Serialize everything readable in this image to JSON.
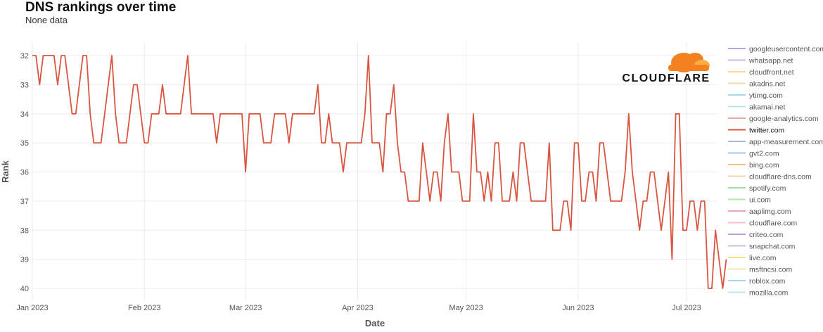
{
  "title": "DNS rankings over time",
  "subtitle": "None data",
  "logo_text": "CLOUDFLARE",
  "chart_data": {
    "type": "line",
    "title": "DNS rankings over time",
    "subtitle": "None data",
    "xlabel": "Date",
    "ylabel": "Rank",
    "y_reversed": true,
    "ylim": [
      32,
      40
    ],
    "yticks": [
      "32",
      "33",
      "34",
      "35",
      "36",
      "37",
      "38",
      "39",
      "40"
    ],
    "xlim": [
      "2023-01-01",
      "2023-07-10"
    ],
    "xticks": [
      {
        "date": "2023-01-01",
        "label": "Jan 2023"
      },
      {
        "date": "2023-02-01",
        "label": "Feb 2023"
      },
      {
        "date": "2023-03-01",
        "label": "Mar 2023"
      },
      {
        "date": "2023-04-01",
        "label": "Apr 2023"
      },
      {
        "date": "2023-05-01",
        "label": "May 2023"
      },
      {
        "date": "2023-06-01",
        "label": "Jun 2023"
      },
      {
        "date": "2023-07-01",
        "label": "Jul 2023"
      }
    ],
    "grid": true,
    "legend_position": "right",
    "legend": [
      {
        "name": "googleusercontent.com",
        "color": "#b7a6d9"
      },
      {
        "name": "whatsapp.net",
        "color": "#d8b6e3"
      },
      {
        "name": "cloudfront.net",
        "color": "#f7d88c"
      },
      {
        "name": "akadns.net",
        "color": "#f7d9a8"
      },
      {
        "name": "ytimg.com",
        "color": "#a9d7ec"
      },
      {
        "name": "akamai.net",
        "color": "#b9e2ef"
      },
      {
        "name": "google-analytics.com",
        "color": "#e8a79d"
      },
      {
        "name": "twitter.com",
        "color": "#d9553f"
      },
      {
        "name": "app-measurement.com",
        "color": "#9cb9e8"
      },
      {
        "name": "gvt2.com",
        "color": "#a9c4ee"
      },
      {
        "name": "bing.com",
        "color": "#f5bf86"
      },
      {
        "name": "cloudflare-dns.com",
        "color": "#f7d0b0"
      },
      {
        "name": "spotify.com",
        "color": "#9fdba6"
      },
      {
        "name": "ui.com",
        "color": "#b5e4b5"
      },
      {
        "name": "aaplimg.com",
        "color": "#f0a3b3"
      },
      {
        "name": "cloudflare.com",
        "color": "#f3c1cb"
      },
      {
        "name": "criteo.com",
        "color": "#c69be0"
      },
      {
        "name": "snapchat.com",
        "color": "#d9b8e6"
      },
      {
        "name": "live.com",
        "color": "#f7e08a"
      },
      {
        "name": "msftncsi.com",
        "color": "#f7e6b0"
      },
      {
        "name": "roblox.com",
        "color": "#9fd8e2"
      },
      {
        "name": "mozilla.com",
        "color": "#c2e6ee"
      }
    ],
    "series": [
      {
        "name": "twitter.com",
        "color": "#d9553f",
        "points": [
          [
            "2023-01-01",
            32
          ],
          [
            "2023-01-02",
            32
          ],
          [
            "2023-01-03",
            33
          ],
          [
            "2023-01-04",
            32
          ],
          [
            "2023-01-05",
            32
          ],
          [
            "2023-01-06",
            32
          ],
          [
            "2023-01-07",
            32
          ],
          [
            "2023-01-08",
            33
          ],
          [
            "2023-01-09",
            32
          ],
          [
            "2023-01-10",
            32
          ],
          [
            "2023-01-11",
            33
          ],
          [
            "2023-01-12",
            34
          ],
          [
            "2023-01-13",
            34
          ],
          [
            "2023-01-14",
            33
          ],
          [
            "2023-01-15",
            32
          ],
          [
            "2023-01-16",
            32
          ],
          [
            "2023-01-17",
            34
          ],
          [
            "2023-01-18",
            35
          ],
          [
            "2023-01-19",
            35
          ],
          [
            "2023-01-20",
            35
          ],
          [
            "2023-01-21",
            34
          ],
          [
            "2023-01-22",
            33
          ],
          [
            "2023-01-23",
            32
          ],
          [
            "2023-01-24",
            34
          ],
          [
            "2023-01-25",
            35
          ],
          [
            "2023-01-26",
            35
          ],
          [
            "2023-01-27",
            35
          ],
          [
            "2023-01-28",
            34
          ],
          [
            "2023-01-29",
            33
          ],
          [
            "2023-01-30",
            33
          ],
          [
            "2023-01-31",
            34
          ],
          [
            "2023-02-01",
            35
          ],
          [
            "2023-02-02",
            35
          ],
          [
            "2023-02-03",
            34
          ],
          [
            "2023-02-04",
            34
          ],
          [
            "2023-02-05",
            34
          ],
          [
            "2023-02-06",
            33
          ],
          [
            "2023-02-07",
            34
          ],
          [
            "2023-02-08",
            34
          ],
          [
            "2023-02-09",
            34
          ],
          [
            "2023-02-10",
            34
          ],
          [
            "2023-02-11",
            34
          ],
          [
            "2023-02-12",
            33
          ],
          [
            "2023-02-13",
            32
          ],
          [
            "2023-02-14",
            34
          ],
          [
            "2023-02-15",
            34
          ],
          [
            "2023-02-16",
            34
          ],
          [
            "2023-02-17",
            34
          ],
          [
            "2023-02-18",
            34
          ],
          [
            "2023-02-19",
            34
          ],
          [
            "2023-02-20",
            34
          ],
          [
            "2023-02-21",
            35
          ],
          [
            "2023-02-22",
            34
          ],
          [
            "2023-02-23",
            34
          ],
          [
            "2023-02-24",
            34
          ],
          [
            "2023-02-25",
            34
          ],
          [
            "2023-02-26",
            34
          ],
          [
            "2023-02-27",
            34
          ],
          [
            "2023-02-28",
            34
          ],
          [
            "2023-03-01",
            36
          ],
          [
            "2023-03-02",
            34
          ],
          [
            "2023-03-03",
            34
          ],
          [
            "2023-03-04",
            34
          ],
          [
            "2023-03-05",
            34
          ],
          [
            "2023-03-06",
            35
          ],
          [
            "2023-03-07",
            35
          ],
          [
            "2023-03-08",
            35
          ],
          [
            "2023-03-09",
            34
          ],
          [
            "2023-03-10",
            34
          ],
          [
            "2023-03-11",
            34
          ],
          [
            "2023-03-12",
            34
          ],
          [
            "2023-03-13",
            35
          ],
          [
            "2023-03-14",
            34
          ],
          [
            "2023-03-15",
            34
          ],
          [
            "2023-03-16",
            34
          ],
          [
            "2023-03-17",
            34
          ],
          [
            "2023-03-18",
            34
          ],
          [
            "2023-03-19",
            34
          ],
          [
            "2023-03-20",
            34
          ],
          [
            "2023-03-21",
            33
          ],
          [
            "2023-03-22",
            35
          ],
          [
            "2023-03-23",
            35
          ],
          [
            "2023-03-24",
            34
          ],
          [
            "2023-03-25",
            35
          ],
          [
            "2023-03-26",
            35
          ],
          [
            "2023-03-27",
            35
          ],
          [
            "2023-03-28",
            36
          ],
          [
            "2023-03-29",
            35
          ],
          [
            "2023-03-30",
            35
          ],
          [
            "2023-03-31",
            35
          ],
          [
            "2023-04-01",
            35
          ],
          [
            "2023-04-02",
            35
          ],
          [
            "2023-04-03",
            34
          ],
          [
            "2023-04-04",
            32
          ],
          [
            "2023-04-05",
            35
          ],
          [
            "2023-04-06",
            35
          ],
          [
            "2023-04-07",
            35
          ],
          [
            "2023-04-08",
            36
          ],
          [
            "2023-04-09",
            34
          ],
          [
            "2023-04-10",
            34
          ],
          [
            "2023-04-11",
            33
          ],
          [
            "2023-04-12",
            35
          ],
          [
            "2023-04-13",
            36
          ],
          [
            "2023-04-14",
            36
          ],
          [
            "2023-04-15",
            37
          ],
          [
            "2023-04-16",
            37
          ],
          [
            "2023-04-17",
            37
          ],
          [
            "2023-04-18",
            37
          ],
          [
            "2023-04-19",
            35
          ],
          [
            "2023-04-20",
            36
          ],
          [
            "2023-04-21",
            37
          ],
          [
            "2023-04-22",
            36
          ],
          [
            "2023-04-23",
            36
          ],
          [
            "2023-04-24",
            37
          ],
          [
            "2023-04-25",
            35
          ],
          [
            "2023-04-26",
            34
          ],
          [
            "2023-04-27",
            36
          ],
          [
            "2023-04-28",
            36
          ],
          [
            "2023-04-29",
            36
          ],
          [
            "2023-04-30",
            37
          ],
          [
            "2023-05-01",
            37
          ],
          [
            "2023-05-02",
            37
          ],
          [
            "2023-05-03",
            34
          ],
          [
            "2023-05-04",
            36
          ],
          [
            "2023-05-05",
            36
          ],
          [
            "2023-05-06",
            37
          ],
          [
            "2023-05-07",
            36
          ],
          [
            "2023-05-08",
            37
          ],
          [
            "2023-05-09",
            35
          ],
          [
            "2023-05-10",
            35
          ],
          [
            "2023-05-11",
            37
          ],
          [
            "2023-05-12",
            37
          ],
          [
            "2023-05-13",
            37
          ],
          [
            "2023-05-14",
            36
          ],
          [
            "2023-05-15",
            37
          ],
          [
            "2023-05-16",
            35
          ],
          [
            "2023-05-17",
            35
          ],
          [
            "2023-05-18",
            36
          ],
          [
            "2023-05-19",
            37
          ],
          [
            "2023-05-20",
            37
          ],
          [
            "2023-05-21",
            37
          ],
          [
            "2023-05-22",
            37
          ],
          [
            "2023-05-23",
            37
          ],
          [
            "2023-05-24",
            35
          ],
          [
            "2023-05-25",
            38
          ],
          [
            "2023-05-26",
            38
          ],
          [
            "2023-05-27",
            38
          ],
          [
            "2023-05-28",
            37
          ],
          [
            "2023-05-29",
            37
          ],
          [
            "2023-05-30",
            38
          ],
          [
            "2023-05-31",
            35
          ],
          [
            "2023-06-01",
            35
          ],
          [
            "2023-06-02",
            37
          ],
          [
            "2023-06-03",
            37
          ],
          [
            "2023-06-04",
            36
          ],
          [
            "2023-06-05",
            36
          ],
          [
            "2023-06-06",
            37
          ],
          [
            "2023-06-07",
            35
          ],
          [
            "2023-06-08",
            35
          ],
          [
            "2023-06-09",
            36
          ],
          [
            "2023-06-10",
            37
          ],
          [
            "2023-06-11",
            37
          ],
          [
            "2023-06-12",
            37
          ],
          [
            "2023-06-13",
            37
          ],
          [
            "2023-06-14",
            36
          ],
          [
            "2023-06-15",
            34
          ],
          [
            "2023-06-16",
            36
          ],
          [
            "2023-06-17",
            37
          ],
          [
            "2023-06-18",
            38
          ],
          [
            "2023-06-19",
            37
          ],
          [
            "2023-06-20",
            37
          ],
          [
            "2023-06-21",
            36
          ],
          [
            "2023-06-22",
            36
          ],
          [
            "2023-06-23",
            37
          ],
          [
            "2023-06-24",
            38
          ],
          [
            "2023-06-25",
            37
          ],
          [
            "2023-06-26",
            36
          ],
          [
            "2023-06-27",
            39
          ],
          [
            "2023-06-28",
            34
          ],
          [
            "2023-06-29",
            34
          ],
          [
            "2023-06-30",
            38
          ],
          [
            "2023-07-01",
            38
          ],
          [
            "2023-07-02",
            37
          ],
          [
            "2023-07-03",
            37
          ],
          [
            "2023-07-04",
            38
          ],
          [
            "2023-07-05",
            37
          ],
          [
            "2023-07-06",
            37
          ],
          [
            "2023-07-07",
            40
          ],
          [
            "2023-07-08",
            40
          ],
          [
            "2023-07-09",
            38
          ],
          [
            "2023-07-10",
            39
          ],
          [
            "2023-07-11",
            40
          ],
          [
            "2023-07-12",
            39
          ]
        ]
      }
    ]
  }
}
